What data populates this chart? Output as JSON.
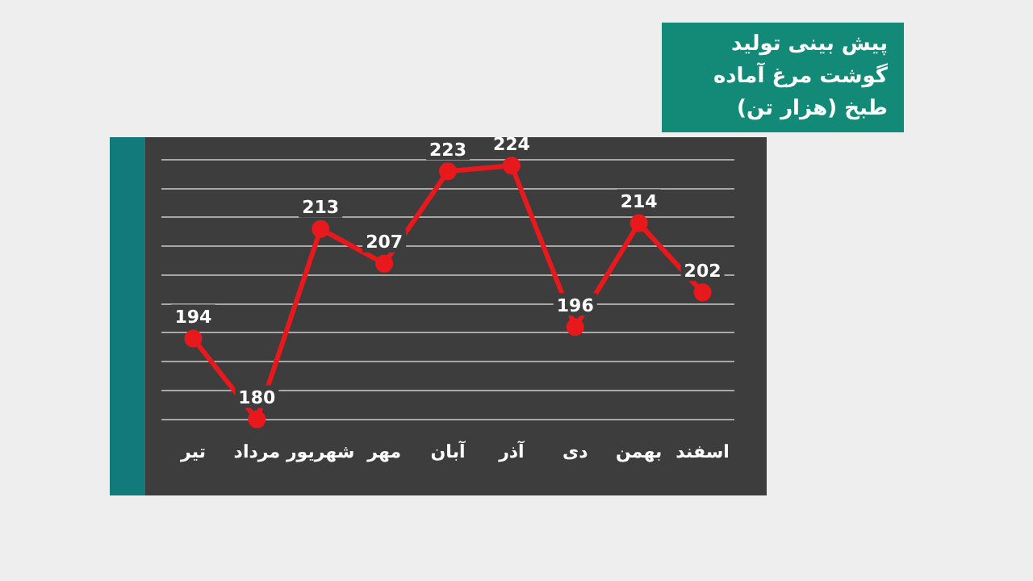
{
  "chart_data": {
    "type": "line",
    "title": "پیش بینی تولید گوشت مرغ آماده طبخ (هزار تن)",
    "categories": [
      "تیر",
      "مرداد",
      "شهریور",
      "مهر",
      "آبان",
      "آذر",
      "دی",
      "بهمن",
      "اسفند"
    ],
    "series": [
      {
        "color": "#e8191d",
        "values": [
          194,
          180,
          213,
          207,
          223,
          224,
          196,
          214,
          202
        ]
      }
    ],
    "grid": "y",
    "tick_labels": "x",
    "legend": false,
    "marker": "circle",
    "line_style": "solid",
    "data_labels": true
  }
}
